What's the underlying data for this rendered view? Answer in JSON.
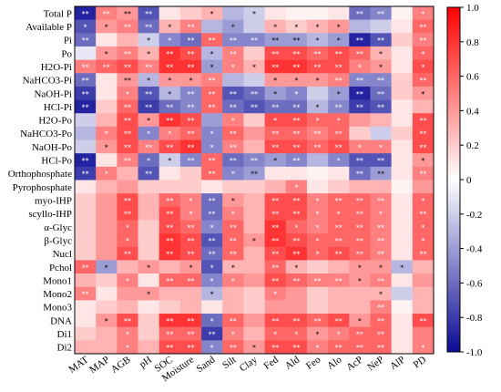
{
  "chart_data": {
    "type": "heatmap",
    "title": "",
    "xlabel": "",
    "ylabel": "",
    "x_labels": [
      "MAT",
      "MAP",
      "AGB",
      "pH",
      "SOC",
      "Moisture",
      "Sand",
      "Silt",
      "Clay",
      "Fed",
      "Ald",
      "Feo",
      "Alo",
      "AcP",
      "NeP",
      "AlP",
      "PD"
    ],
    "y_labels": [
      "Total P",
      "Available P",
      "Pi",
      "Po",
      "H2O-Pi",
      "NaHCO3-Pi",
      "NaOH-Pi",
      "HCl-Pi",
      "H2O-Po",
      "NaHCO3-Po",
      "NaOH-Po",
      "HCl-Po",
      "Orthophosphate",
      "Pyrophosphate",
      "myo-IHP",
      "scyllo-IHP",
      "α-Glyc",
      "β-Glyc",
      "Nucl",
      "Pchol",
      "Mono1",
      "Mono2",
      "Mono3",
      "DNA",
      "Di1",
      "Di2"
    ],
    "values": [
      [
        -0.9,
        0.5,
        0.4,
        -0.7,
        0.1,
        0.2,
        0.3,
        -0.3,
        -0.2,
        0.1,
        0.05,
        0.05,
        0.1,
        -0.6,
        -0.5,
        0.05,
        0.5
      ],
      [
        -0.7,
        0.4,
        0.5,
        -0.6,
        0.3,
        0.5,
        -0.3,
        -0.4,
        -0.2,
        0.3,
        0.2,
        0.3,
        0.4,
        -0.3,
        -0.2,
        0.1,
        0.6
      ],
      [
        -0.6,
        0.1,
        0.3,
        -0.2,
        -0.5,
        -0.6,
        0.6,
        -0.5,
        -0.5,
        -0.4,
        -0.4,
        -0.3,
        -0.4,
        -0.9,
        -0.7,
        0.2,
        0.5
      ],
      [
        -0.1,
        0.4,
        0.5,
        0.3,
        0.8,
        0.7,
        -0.3,
        0.5,
        0.2,
        0.7,
        0.7,
        0.6,
        0.7,
        0.6,
        0.3,
        0.1,
        0.6
      ],
      [
        0.5,
        0.6,
        0.7,
        0.5,
        0.8,
        0.8,
        -0.4,
        0.5,
        0.3,
        0.8,
        0.8,
        0.7,
        0.7,
        0.5,
        0.4,
        0.1,
        0.7
      ],
      [
        -0.6,
        0.1,
        0.4,
        -0.3,
        0.4,
        0.4,
        0.5,
        -0.3,
        -0.2,
        0.4,
        0.4,
        0.4,
        0.5,
        -0.5,
        -0.5,
        0.2,
        0.6
      ],
      [
        -0.8,
        0.1,
        0.5,
        -0.7,
        -0.3,
        -0.5,
        0.6,
        -0.7,
        -0.6,
        -0.4,
        -0.5,
        -0.2,
        -0.4,
        -0.9,
        -0.6,
        0.2,
        0.4
      ],
      [
        -0.9,
        0.2,
        0.6,
        -0.8,
        -0.6,
        -0.5,
        0.6,
        -0.6,
        -0.7,
        -0.6,
        -0.6,
        -0.3,
        -0.5,
        -0.8,
        -0.7,
        0.1,
        0.3
      ],
      [
        -0.2,
        0.3,
        0.7,
        0.4,
        0.8,
        0.7,
        -0.4,
        0.5,
        0.2,
        0.7,
        0.7,
        0.6,
        0.6,
        0.4,
        0.3,
        0.1,
        0.7
      ],
      [
        -0.3,
        0.5,
        0.7,
        -0.5,
        0.5,
        0.6,
        -0.5,
        0.6,
        0.4,
        0.6,
        0.6,
        0.5,
        0.6,
        0.2,
        -0.2,
        0.2,
        0.7
      ],
      [
        -0.2,
        0.4,
        0.7,
        0.5,
        0.7,
        0.8,
        -0.5,
        0.5,
        0.3,
        0.7,
        0.7,
        0.6,
        0.7,
        0.5,
        0.5,
        0.1,
        0.7
      ],
      [
        -0.9,
        0.1,
        0.5,
        -0.6,
        -0.2,
        -0.5,
        0.6,
        -0.6,
        -0.5,
        -0.4,
        -0.5,
        -0.3,
        -0.5,
        -0.7,
        -0.7,
        0.1,
        0.4
      ],
      [
        -0.8,
        0.5,
        0.3,
        -0.7,
        0.1,
        0.2,
        0.6,
        -0.5,
        -0.4,
        0.1,
        0.1,
        0.05,
        0.1,
        -0.6,
        -0.4,
        0.1,
        0.5
      ],
      [
        0.1,
        0.3,
        0.4,
        0.2,
        0.2,
        0.2,
        0.1,
        0.2,
        0.2,
        0.3,
        0.5,
        0.1,
        0.2,
        0.3,
        0.3,
        0.05,
        0.4
      ],
      [
        0.2,
        0.4,
        0.7,
        0.3,
        0.6,
        0.5,
        -0.6,
        0.4,
        0.3,
        0.7,
        0.7,
        0.5,
        0.6,
        0.6,
        0.5,
        0.1,
        0.6
      ],
      [
        0.2,
        0.4,
        0.7,
        0.3,
        0.7,
        0.5,
        -0.6,
        0.5,
        0.3,
        0.7,
        0.7,
        0.5,
        0.6,
        0.6,
        0.5,
        0.1,
        0.6
      ],
      [
        0.2,
        0.4,
        0.6,
        0.2,
        0.7,
        0.6,
        -0.5,
        0.6,
        0.3,
        0.8,
        0.6,
        0.5,
        0.6,
        0.6,
        0.5,
        0.1,
        0.6
      ],
      [
        0.2,
        0.4,
        0.6,
        0.2,
        0.8,
        0.7,
        -0.7,
        0.6,
        0.4,
        0.8,
        0.7,
        0.6,
        0.6,
        0.6,
        0.5,
        0.1,
        0.6
      ],
      [
        0.2,
        0.4,
        0.7,
        0.2,
        0.8,
        0.7,
        -0.6,
        0.6,
        0.3,
        0.7,
        0.8,
        0.6,
        0.7,
        0.6,
        0.5,
        0.1,
        0.6
      ],
      [
        0.6,
        -0.4,
        0.3,
        0.4,
        0.3,
        0.4,
        -0.7,
        0.3,
        0.3,
        0.6,
        0.3,
        0.2,
        0.3,
        0.4,
        0.4,
        -0.3,
        0.3
      ],
      [
        0.3,
        0.2,
        0.5,
        0.1,
        0.6,
        0.6,
        -0.5,
        0.5,
        0.4,
        0.7,
        0.6,
        0.5,
        0.5,
        0.4,
        0.5,
        0.1,
        0.4
      ],
      [
        0.5,
        0.1,
        0.4,
        0.4,
        0.3,
        0.3,
        -0.3,
        0.3,
        0.2,
        0.5,
        0.4,
        0.2,
        0.3,
        0.3,
        0.3,
        -0.2,
        0.3
      ],
      [
        0.1,
        0.2,
        0.3,
        0.1,
        0.2,
        0.3,
        0.1,
        0.3,
        0.2,
        0.4,
        0.4,
        0.2,
        0.3,
        0.3,
        0.5,
        0.05,
        0.3
      ],
      [
        0.1,
        0.4,
        0.7,
        0.2,
        0.8,
        0.8,
        -0.6,
        0.6,
        0.4,
        0.7,
        0.7,
        0.6,
        0.7,
        0.4,
        0.6,
        0.1,
        0.7
      ],
      [
        0.2,
        0.3,
        0.5,
        0.2,
        0.6,
        0.6,
        -0.8,
        0.5,
        0.3,
        0.6,
        0.6,
        0.4,
        0.5,
        0.6,
        0.6,
        0.1,
        0.5
      ],
      [
        0.3,
        0.3,
        0.5,
        0.3,
        0.7,
        0.7,
        -0.5,
        0.6,
        0.4,
        0.7,
        0.7,
        0.5,
        0.6,
        0.6,
        0.6,
        0.1,
        0.5
      ]
    ],
    "significance": [
      [
        "**",
        "**",
        "**",
        "**",
        "",
        "",
        "*",
        "",
        "*",
        "",
        "",
        "",
        "",
        "**",
        "**",
        "",
        "*"
      ],
      [
        "*",
        "*",
        "**",
        "**",
        "*",
        "**",
        "",
        "*",
        "",
        "*",
        "*",
        "*",
        "*",
        "",
        "",
        "",
        "**"
      ],
      [
        "**",
        "",
        "",
        "*",
        "*",
        "**",
        "**",
        "**",
        "**",
        "**",
        "**",
        "*",
        "*",
        "**",
        "**",
        "",
        "**"
      ],
      [
        "",
        "*",
        "**",
        "*",
        "**",
        "**",
        "*",
        "**",
        "",
        "**",
        "**",
        "**",
        "**",
        "**",
        "*",
        "",
        "*"
      ],
      [
        "**",
        "**",
        "**",
        "**",
        "**",
        "**",
        "*",
        "*",
        "*",
        "**",
        "**",
        "**",
        "**",
        "*",
        "*",
        "",
        "*"
      ],
      [
        "**",
        "",
        "**",
        "*",
        "*",
        "*",
        "**",
        "",
        "",
        "*",
        "*",
        "*",
        "**",
        "**",
        "**",
        "",
        "**"
      ],
      [
        "**",
        "",
        "*",
        "**",
        "*",
        "**",
        "**",
        "**",
        "**",
        "*",
        "*",
        "",
        "*",
        "**",
        "**",
        "",
        "*"
      ],
      [
        "**",
        "",
        "**",
        "**",
        "**",
        "**",
        "**",
        "**",
        "**",
        "**",
        "**",
        "*",
        "**",
        "**",
        "**",
        "",
        ""
      ],
      [
        "",
        "",
        "**",
        "*",
        "**",
        "**",
        "",
        "*",
        "",
        "*",
        "**",
        "*",
        "*",
        "",
        "",
        "",
        "**"
      ],
      [
        "",
        "*",
        "**",
        "*",
        "*",
        "**",
        "*",
        "**",
        "",
        "**",
        "**",
        "**",
        "**",
        "",
        "",
        "",
        "**"
      ],
      [
        "",
        "*",
        "**",
        "**",
        "**",
        "**",
        "*",
        "**",
        "",
        "**",
        "**",
        "**",
        "**",
        "*",
        "*",
        "",
        "**"
      ],
      [
        "**",
        "",
        "**",
        "*",
        "*",
        "**",
        "**",
        "**",
        "**",
        "*",
        "**",
        "",
        "*",
        "**",
        "**",
        "",
        "*"
      ],
      [
        "**",
        "*",
        "",
        "**",
        "",
        "",
        "**",
        "*",
        "**",
        "",
        "",
        "",
        "",
        "**",
        "**",
        "",
        "**"
      ],
      [
        "",
        "",
        "",
        "",
        "",
        "",
        "",
        "",
        "",
        "",
        "*",
        "",
        "",
        "",
        "",
        "",
        ""
      ],
      [
        "",
        "",
        "**",
        "",
        "**",
        "*",
        "**",
        "*",
        "",
        "**",
        "**",
        "*",
        "**",
        "**",
        "**",
        "",
        "*"
      ],
      [
        "",
        "",
        "**",
        "",
        "**",
        "*",
        "**",
        "*",
        "",
        "**",
        "**",
        "*",
        "*",
        "**",
        "*",
        "",
        "**"
      ],
      [
        "",
        "",
        "*",
        "",
        "**",
        "**",
        "*",
        "**",
        "",
        "**",
        "*",
        "*",
        "**",
        "**",
        "**",
        "",
        "*"
      ],
      [
        "",
        "",
        "*",
        "",
        "**",
        "**",
        "**",
        "**",
        "*",
        "**",
        "**",
        "*",
        "**",
        "**",
        "**",
        "",
        "*"
      ],
      [
        "",
        "",
        "**",
        "",
        "**",
        "**",
        "**",
        "**",
        "",
        "**",
        "**",
        "*",
        "**",
        "**",
        "**",
        "",
        "**"
      ],
      [
        "**",
        "*",
        "",
        "*",
        "",
        "*",
        "*",
        "*",
        "",
        "**",
        "*",
        "",
        "",
        "*",
        "*",
        "*",
        ""
      ],
      [
        "",
        "",
        "*",
        "",
        "**",
        "**",
        "*",
        "*",
        "",
        "**",
        "**",
        "**",
        "**",
        "*",
        "**",
        "",
        ""
      ],
      [
        "**",
        "",
        "",
        "*",
        "",
        "",
        "*",
        "",
        "",
        "*",
        "",
        "",
        "",
        "",
        "*",
        "",
        ""
      ],
      [
        "",
        "",
        "",
        "",
        "",
        "",
        "",
        "",
        "",
        "",
        "",
        "",
        "",
        "",
        "**",
        "",
        ""
      ],
      [
        "",
        "*",
        "**",
        "",
        "**",
        "**",
        "*",
        "**",
        "",
        "**",
        "**",
        "**",
        "**",
        "*",
        "**",
        "",
        "**"
      ],
      [
        "",
        "",
        "*",
        "",
        "**",
        "**",
        "**",
        "*",
        "",
        "*",
        "*",
        "*",
        "*",
        "**",
        "**",
        "",
        ""
      ],
      [
        "",
        "",
        "*",
        "",
        "**",
        "**",
        "*",
        "**",
        "*",
        "**",
        "**",
        "*",
        "**",
        "**",
        "**",
        "",
        "*"
      ]
    ],
    "vmin": -1.0,
    "vmax": 1.0,
    "colorscale": {
      "low": "#0b0b96",
      "mid": "#ffffff",
      "high": "#ff0000"
    },
    "colorbar": {
      "ticks": [
        1.0,
        0.8,
        0.6,
        0.4,
        0.2,
        0.0,
        -0.2,
        -0.4,
        -0.6,
        -0.8,
        -1.0
      ],
      "tick_labels": [
        "1.0",
        "0.8",
        "0.6",
        "0.4",
        "0.2",
        "0",
        "-0.2",
        "-0.4",
        "-0.6",
        "-0.8",
        "-1.0"
      ]
    },
    "grid": false,
    "legend": "right"
  }
}
